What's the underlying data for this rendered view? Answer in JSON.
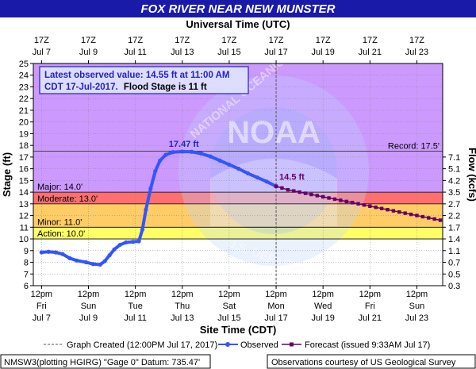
{
  "title": "FOX RIVER NEAR NEW MUNSTER",
  "colors": {
    "title_bg": "#1a1aa8",
    "title_fg": "#ffffff",
    "major": "#cc99ff",
    "major_flood": "#ff6666",
    "moderate": "#ff9999",
    "minor": "#ffcc66",
    "action": "#ffff66",
    "normal": "#ffffff",
    "observed": "#3355ff",
    "forecast": "#660066",
    "grid": "#888888",
    "record": "#444444",
    "callout": "#2222cc"
  },
  "chart_data": {
    "type": "line",
    "top_axis_title": "Universal Time (UTC)",
    "top_ticks": [
      {
        "hour": "17Z",
        "date": "Jul 7"
      },
      {
        "hour": "17Z",
        "date": "Jul 9"
      },
      {
        "hour": "17Z",
        "date": "Jul 11"
      },
      {
        "hour": "17Z",
        "date": "Jul 13"
      },
      {
        "hour": "17Z",
        "date": "Jul 15"
      },
      {
        "hour": "17Z",
        "date": "Jul 17"
      },
      {
        "hour": "17Z",
        "date": "Jul 19"
      },
      {
        "hour": "17Z",
        "date": "Jul 21"
      },
      {
        "hour": "17Z",
        "date": "Jul 23"
      }
    ],
    "bottom_axis_title": "Site Time (CDT)",
    "bottom_ticks": [
      {
        "time": "12pm",
        "day": "Fri",
        "date": "Jul 7"
      },
      {
        "time": "12pm",
        "day": "Sun",
        "date": "Jul 9"
      },
      {
        "time": "12pm",
        "day": "Tue",
        "date": "Jul 11"
      },
      {
        "time": "12pm",
        "day": "Thu",
        "date": "Jul 13"
      },
      {
        "time": "12pm",
        "day": "Sat",
        "date": "Jul 15"
      },
      {
        "time": "12pm",
        "day": "Mon",
        "date": "Jul 17"
      },
      {
        "time": "12pm",
        "day": "Wed",
        "date": "Jul 19"
      },
      {
        "time": "12pm",
        "day": "Fri",
        "date": "Jul 21"
      },
      {
        "time": "12pm",
        "day": "Sun",
        "date": "Jul 23"
      }
    ],
    "x_range_days": [
      -0.35,
      17.1
    ],
    "y_left_title": "Stage (ft)",
    "y_left_range": [
      6,
      25
    ],
    "y_left_ticks": [
      "6",
      "7",
      "8",
      "9",
      "10",
      "11",
      "12",
      "13",
      "14",
      "15",
      "16",
      "17",
      "18",
      "19",
      "20",
      "21",
      "22",
      "23",
      "24",
      "25"
    ],
    "y_right_title": "Flow (kcfs)",
    "y_right_ticks": [
      {
        "stage": 6.0,
        "label": "0.3"
      },
      {
        "stage": 7.0,
        "label": "0.5"
      },
      {
        "stage": 8.0,
        "label": "0.7"
      },
      {
        "stage": 9.0,
        "label": "1.1"
      },
      {
        "stage": 10.0,
        "label": "1.4"
      },
      {
        "stage": 11.0,
        "label": "1.7"
      },
      {
        "stage": 12.0,
        "label": "2.2"
      },
      {
        "stage": 13.0,
        "label": "2.7"
      },
      {
        "stage": 14.0,
        "label": "3.5"
      },
      {
        "stage": 15.0,
        "label": "4.2"
      },
      {
        "stage": 16.0,
        "label": "5.1"
      },
      {
        "stage": 17.0,
        "label": "7.1"
      }
    ],
    "flood_categories": [
      {
        "label": "Action: 10.0'",
        "from": 10,
        "to": 11,
        "color_key": "action"
      },
      {
        "label": "Minor: 11.0'",
        "from": 11,
        "to": 13,
        "color_key": "minor"
      },
      {
        "label": "Moderate: 13.0'",
        "from": 13,
        "to": 14,
        "color_key": "major_flood"
      },
      {
        "label": "Major: 14.0'",
        "from": 14,
        "to": 25,
        "color_key": "major"
      }
    ],
    "record": {
      "label": "Record: 17.5'",
      "value": 17.5
    },
    "latest_box": {
      "line1": "Latest observed value: 14.55 ft at 11:00 AM",
      "line2a": "CDT 17-Jul-2017.",
      "line2b": "Flood Stage is 11 ft"
    },
    "peak_label": "17.47 ft",
    "peak_point": [
      6.0,
      17.47
    ],
    "latest_label": "14.5 ft",
    "latest_point": [
      10.0,
      14.5
    ],
    "graph_created_day": 10.0,
    "observed": {
      "name": "Observed",
      "points": [
        [
          0.0,
          8.85
        ],
        [
          0.3,
          8.9
        ],
        [
          0.6,
          8.85
        ],
        [
          0.9,
          8.7
        ],
        [
          1.2,
          8.35
        ],
        [
          1.5,
          8.15
        ],
        [
          1.9,
          8.0
        ],
        [
          2.2,
          7.85
        ],
        [
          2.5,
          7.8
        ],
        [
          2.7,
          8.1
        ],
        [
          2.9,
          8.6
        ],
        [
          3.1,
          9.1
        ],
        [
          3.35,
          9.5
        ],
        [
          3.6,
          9.7
        ],
        [
          3.9,
          9.75
        ],
        [
          4.15,
          9.8
        ],
        [
          4.3,
          10.8
        ],
        [
          4.45,
          12.5
        ],
        [
          4.65,
          14.3
        ],
        [
          4.85,
          15.8
        ],
        [
          5.05,
          16.7
        ],
        [
          5.3,
          17.2
        ],
        [
          5.6,
          17.42
        ],
        [
          6.0,
          17.47
        ],
        [
          6.4,
          17.45
        ],
        [
          6.8,
          17.3
        ],
        [
          7.2,
          17.05
        ],
        [
          7.6,
          16.7
        ],
        [
          8.0,
          16.35
        ],
        [
          8.4,
          16.0
        ],
        [
          8.8,
          15.6
        ],
        [
          9.2,
          15.25
        ],
        [
          9.6,
          14.9
        ],
        [
          10.0,
          14.5
        ]
      ]
    },
    "forecast": {
      "name": "Forecast (issued 9:33AM Jul 17)",
      "points": [
        [
          10.0,
          14.5
        ],
        [
          10.25,
          14.35
        ],
        [
          10.5,
          14.2
        ],
        [
          10.75,
          14.1
        ],
        [
          11.0,
          14.0
        ],
        [
          11.25,
          13.9
        ],
        [
          11.5,
          13.8
        ],
        [
          11.75,
          13.7
        ],
        [
          12.0,
          13.6
        ],
        [
          12.25,
          13.5
        ],
        [
          12.5,
          13.4
        ],
        [
          12.75,
          13.3
        ],
        [
          13.0,
          13.2
        ],
        [
          13.25,
          13.1
        ],
        [
          13.5,
          13.0
        ],
        [
          13.75,
          12.9
        ],
        [
          14.0,
          12.8
        ],
        [
          14.25,
          12.7
        ],
        [
          14.5,
          12.6
        ],
        [
          14.75,
          12.5
        ],
        [
          15.0,
          12.4
        ],
        [
          15.25,
          12.3
        ],
        [
          15.5,
          12.2
        ],
        [
          15.75,
          12.1
        ],
        [
          16.0,
          12.0
        ],
        [
          16.25,
          11.9
        ],
        [
          16.5,
          11.8
        ],
        [
          16.75,
          11.7
        ],
        [
          17.0,
          11.6
        ]
      ]
    },
    "legend": {
      "graph_created": "Graph Created (12:00PM Jul 17, 2017)",
      "observed": "Observed",
      "forecast": "Forecast (issued 9:33AM Jul 17)"
    }
  },
  "footer": {
    "left": "NMSW3(plotting HGIRG) \"Gage 0\" Datum: 735.47'",
    "right": "Observations courtesy of US Geological Survey"
  },
  "watermark": {
    "logo_text": "NOAA",
    "ring_text": "NATIONAL OCEANIC AND ATMOSPHERIC ADMINISTRATION",
    "bottom_text": "U.S. DEPARTMENT OF COMMERCE"
  }
}
